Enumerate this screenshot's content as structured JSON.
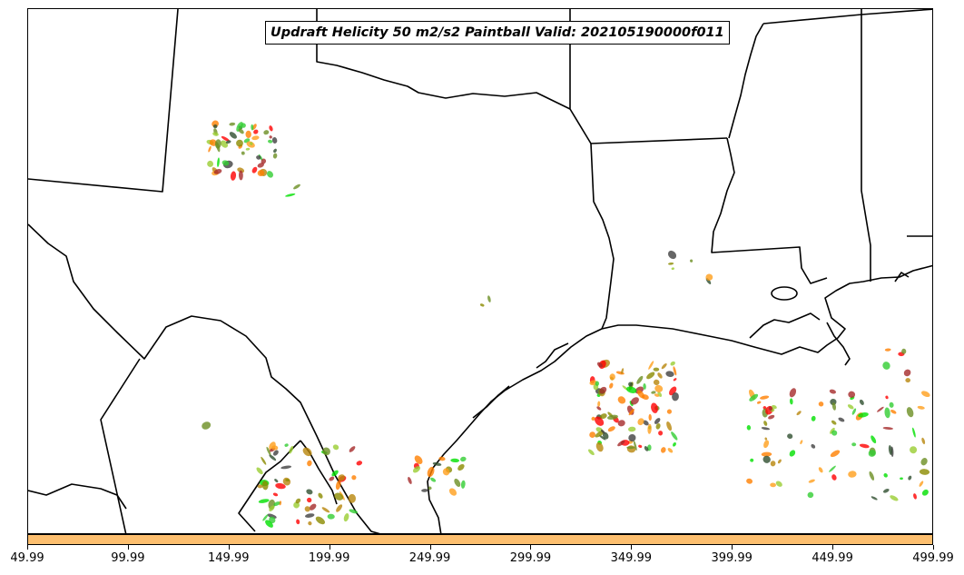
{
  "title": "Updraft Helicity 50 m2/s2 Paintball Valid: 202105190000f011",
  "x_ticks": [
    "49.99",
    "99.99",
    "149.99",
    "199.99",
    "249.99",
    "299.99",
    "349.99",
    "399.99",
    "449.99",
    "499.99"
  ],
  "colorbar_color": "#fdbf6f",
  "member_colors": [
    "#ff0000",
    "#ff7f00",
    "#ff9f1c",
    "#00e000",
    "#32cd32",
    "#8b8b00",
    "#6b8e23",
    "#2f4f2f",
    "#a52a2a",
    "#b8860b",
    "#404040",
    "#9acd32"
  ],
  "map_features": [
    "state-boundaries",
    "country-boundaries",
    "coastlines",
    "lakes"
  ]
}
